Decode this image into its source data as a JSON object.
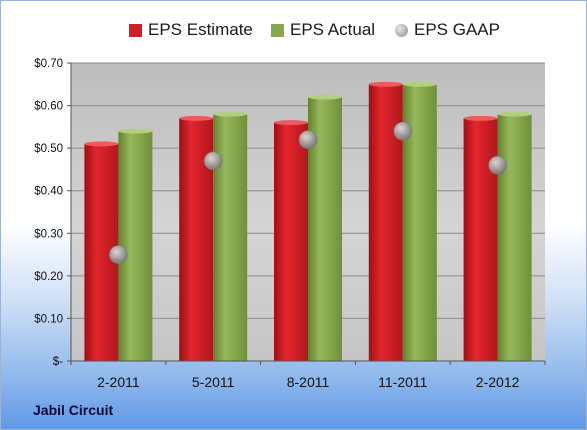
{
  "footer_title": "Jabil Circuit",
  "colors": {
    "estimate": "#d11f26",
    "actual": "#86a84c",
    "gaap": "#9a9a9a"
  },
  "chart_data": {
    "type": "bar",
    "title": "",
    "xlabel": "",
    "ylabel": "",
    "categories": [
      "2-2011",
      "5-2011",
      "8-2011",
      "11-2011",
      "2-2012"
    ],
    "ylim": [
      0,
      0.7
    ],
    "yticks": [
      0,
      0.1,
      0.2,
      0.3,
      0.4,
      0.5,
      0.6,
      0.7
    ],
    "ytick_labels": [
      "$-",
      "$0.10",
      "$0.20",
      "$0.30",
      "$0.40",
      "$0.50",
      "$0.60",
      "$0.70"
    ],
    "grid": true,
    "legend_position": "top",
    "series": [
      {
        "name": "EPS Estimate",
        "kind": "bar",
        "values": [
          0.51,
          0.57,
          0.56,
          0.65,
          0.57
        ]
      },
      {
        "name": "EPS Actual",
        "kind": "bar",
        "values": [
          0.54,
          0.58,
          0.62,
          0.65,
          0.58
        ]
      },
      {
        "name": "EPS GAAP",
        "kind": "marker",
        "values": [
          0.25,
          0.47,
          0.52,
          0.54,
          0.46
        ]
      }
    ]
  }
}
